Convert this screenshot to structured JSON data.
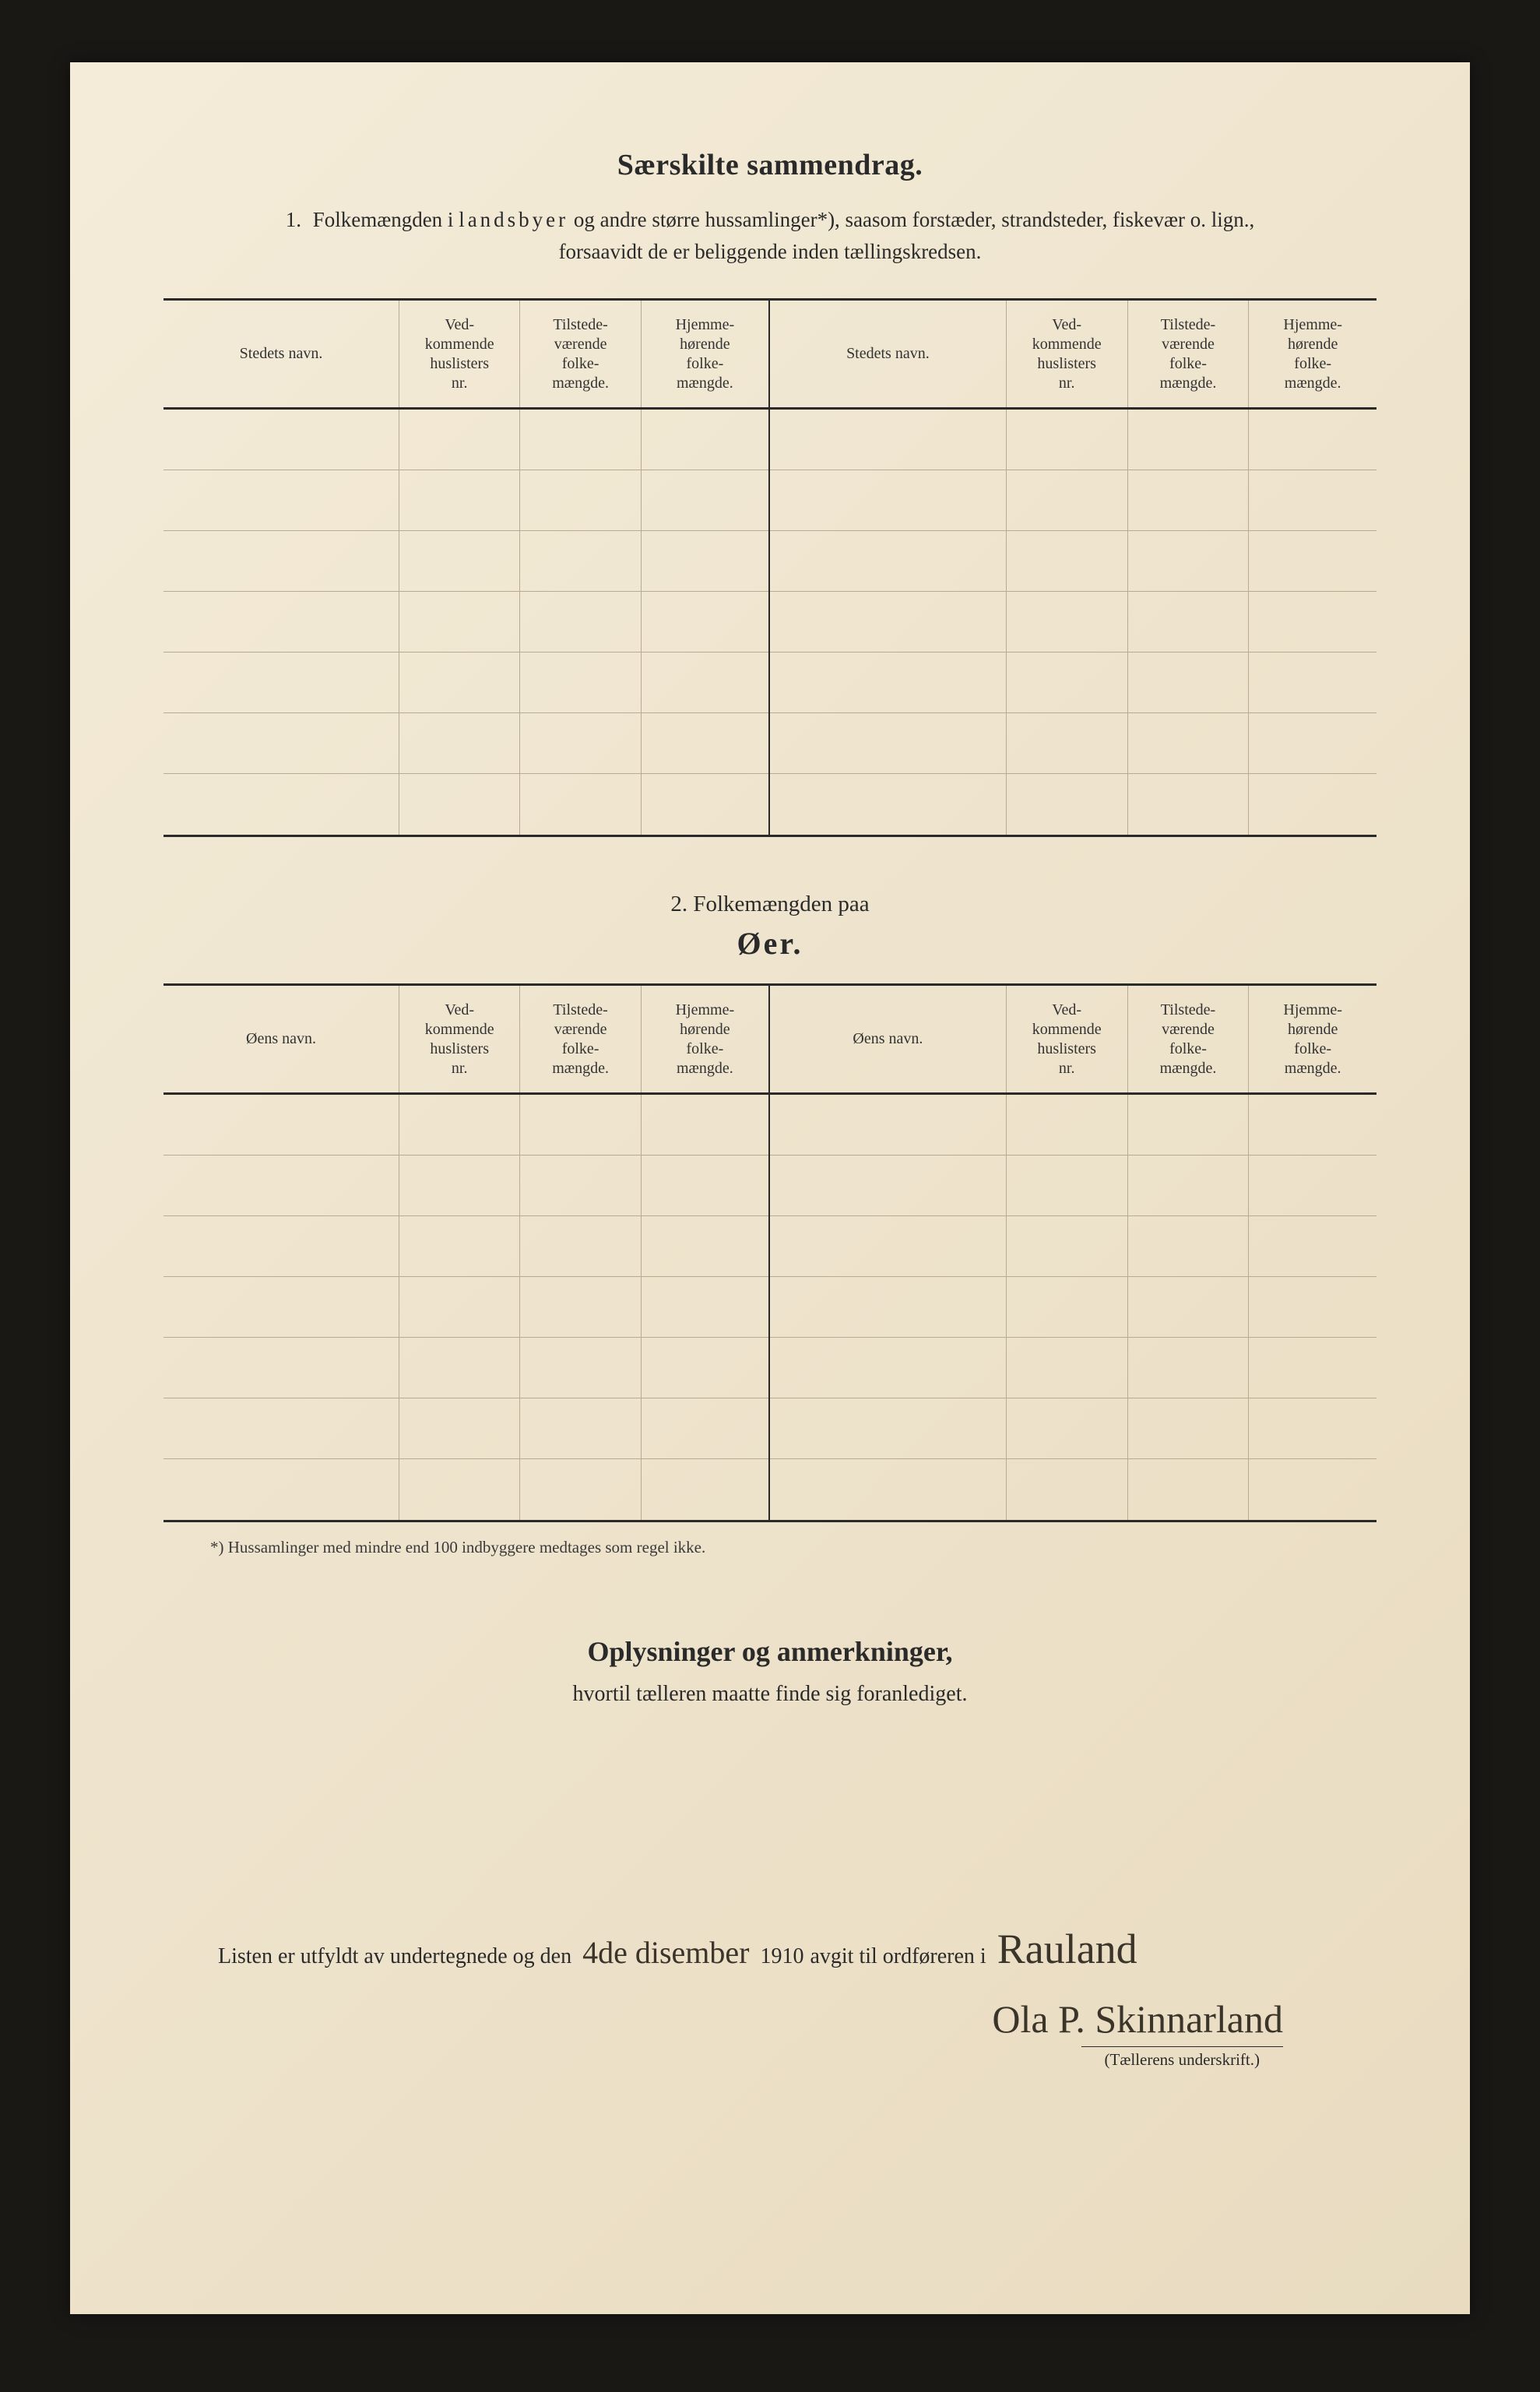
{
  "title_main": "Særskilte sammendrag.",
  "intro": {
    "num": "1.",
    "line1_a": "Folkemængden i ",
    "line1_spaced": "landsbyer",
    "line1_b": " og andre større hussamlinger*), saasom forstæder, strandsteder, fiskevær o. lign.,",
    "line2": "forsaavidt de er beliggende inden tællingskredsen."
  },
  "table1": {
    "headers": {
      "name": "Stedets navn.",
      "a": "Ved-\nkommende\nhuslisters\nnr.",
      "b": "Tilstede-\nværende\nfolke-\nmængde.",
      "c": "Hjemme-\nhørende\nfolke-\nmængde."
    },
    "row_count": 7
  },
  "section2": {
    "line": "2.   Folkemængden paa",
    "sub": "Øer."
  },
  "table2": {
    "headers": {
      "name": "Øens navn.",
      "a": "Ved-\nkommende\nhuslisters\nnr.",
      "b": "Tilstede-\nværende\nfolke-\nmængde.",
      "c": "Hjemme-\nhørende\nfolke-\nmængde."
    },
    "row_count": 7
  },
  "footnote": "*) Hussamlinger med mindre end 100 indbyggere medtages som regel ikke.",
  "oplys": {
    "title": "Oplysninger og anmerkninger,",
    "sub": "hvortil tælleren maatte finde sig foranlediget."
  },
  "sign": {
    "pre": "Listen er utfyldt av undertegnede og den",
    "date_hand": "4de disember",
    "year_print": "1910",
    "mid": "avgit til ordføreren i",
    "place_hand": "Rauland",
    "signature": "Ola P. Skinnarland",
    "caption": "(Tællerens underskrift.)"
  },
  "colors": {
    "ink": "#2a2a2a",
    "rule_light": "#b7ac93",
    "paper_tl": "#f4ecd9",
    "paper_br": "#e8dbc0",
    "bg": "#1a1815",
    "hand_ink": "#3b342a"
  },
  "fontsizes": {
    "title_main": 38,
    "intro": 27,
    "table_header": 20,
    "section2_line": 29,
    "section2_sub": 40,
    "footnote": 21,
    "oplys_title": 36,
    "oplys_sub": 28,
    "sign_line": 28,
    "hand": 40,
    "hand_place": 54,
    "signature": 50,
    "caption": 21
  }
}
